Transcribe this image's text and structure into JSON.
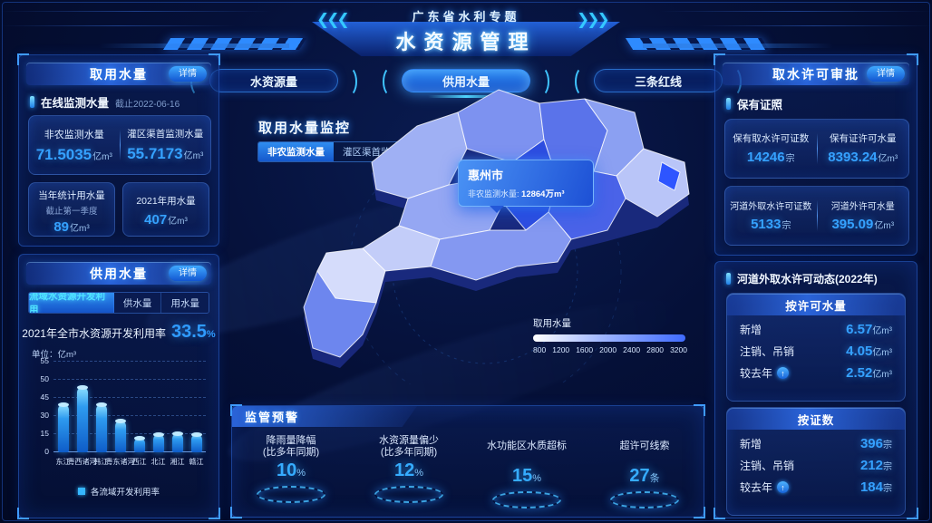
{
  "header": {
    "subtitle": "广东省水利专题",
    "title": "水资源管理"
  },
  "nav_tabs": [
    {
      "label": "水资源量",
      "active": false
    },
    {
      "label": "供用水量",
      "active": true
    },
    {
      "label": "三条红线",
      "active": false
    }
  ],
  "intake_panel": {
    "title": "取用水量",
    "detail": "详情",
    "section": "在线监测水量",
    "as_of": "截止2022-06-16",
    "stats": [
      {
        "label": "非农监测水量",
        "value": "71.5035",
        "unit": "亿m³"
      },
      {
        "label": "灌区渠首监测水量",
        "value": "55.7173",
        "unit": "亿m³"
      }
    ],
    "cards": [
      {
        "label": "当年统计用水量",
        "note": "截止第一季度",
        "value": "89",
        "unit": "亿m³"
      },
      {
        "label": "2021年用水量",
        "value": "407",
        "unit": "亿m³"
      }
    ]
  },
  "supply_panel": {
    "title": "供用水量",
    "detail": "详情",
    "tabs": [
      {
        "label": "流域水资源开发利用",
        "active": true
      },
      {
        "label": "供水量",
        "active": false
      },
      {
        "label": "用水量",
        "active": false
      }
    ],
    "rate_label": "2021年全市水资源开发利用率",
    "rate_value": "33.5",
    "rate_unit": "%"
  },
  "chart_data": {
    "type": "bar",
    "title": "各流域开发利用率",
    "unit_label": "单位：亿m³",
    "categories": [
      "东江",
      "粤西诸河",
      "韩江",
      "粤东诸河",
      "西江",
      "北江",
      "湘江",
      "赣江"
    ],
    "values": [
      40,
      48,
      40,
      26,
      12,
      15,
      16,
      15
    ],
    "yticks": [
      0,
      15,
      30,
      45,
      50,
      55
    ],
    "ylabel": "亿m³",
    "legend": [
      "各流域开发利用率"
    ],
    "legend_position": "bottom",
    "grid": "dashed"
  },
  "monitor": {
    "title": "取用水量监控",
    "toggles": [
      {
        "label": "非农监测水量",
        "active": true
      },
      {
        "label": "灌区渠首监测水量",
        "active": false
      }
    ],
    "tooltip": {
      "city": "惠州市",
      "label": "非农监测水量:",
      "value": "12864万m³"
    },
    "legend": {
      "title": "取用水量",
      "ticks": [
        "800",
        "1200",
        "1600",
        "2000",
        "2400",
        "2800",
        "3200"
      ]
    }
  },
  "warning_panel": {
    "title": "监管预警",
    "items": [
      {
        "label": "降雨量降幅",
        "sub": "(比多年同期)",
        "value": "10",
        "unit": "%"
      },
      {
        "label": "水资源量偏少",
        "sub": "(比多年同期)",
        "value": "12",
        "unit": "%"
      },
      {
        "label": "水功能区水质超标",
        "sub": "",
        "value": "15",
        "unit": "%"
      },
      {
        "label": "超许可线索",
        "sub": "",
        "value": "27",
        "unit": "条"
      }
    ]
  },
  "permit_panel": {
    "title": "取水许可审批",
    "detail": "详情",
    "section": "保有证照",
    "cards": [
      {
        "left": {
          "label": "保有取水许可证数",
          "value": "14246",
          "unit": "宗"
        },
        "right": {
          "label": "保有证许可水量",
          "value": "8393.24",
          "unit": "亿m³"
        }
      },
      {
        "left": {
          "label": "河道外取水许可证数",
          "value": "5133",
          "unit": "宗"
        },
        "right": {
          "label": "河道外许可水量",
          "value": "395.09",
          "unit": "亿m³"
        }
      }
    ]
  },
  "dynamics_panel": {
    "section": "河道外取水许可动态(2022年)",
    "groups": [
      {
        "title": "按许可水量",
        "rows": [
          {
            "label": "新增",
            "value": "6.57",
            "unit": "亿m³"
          },
          {
            "label": "注销、吊销",
            "value": "4.05",
            "unit": "亿m³"
          },
          {
            "label": "较去年",
            "value": "2.52",
            "unit": "亿m³"
          }
        ]
      },
      {
        "title": "按证数",
        "rows": [
          {
            "label": "新增",
            "value": "396",
            "unit": "宗"
          },
          {
            "label": "注销、吊销",
            "value": "212",
            "unit": "宗"
          },
          {
            "label": "较去年",
            "value": "184",
            "unit": "宗"
          }
        ]
      }
    ]
  },
  "colors": {
    "accent_blue": "#2f9bff",
    "accent_cyan": "#4fe3ff",
    "panel_border": "#2c68dc",
    "map_scale_low": "#ffffff",
    "map_scale_high": "#3f6bff"
  }
}
